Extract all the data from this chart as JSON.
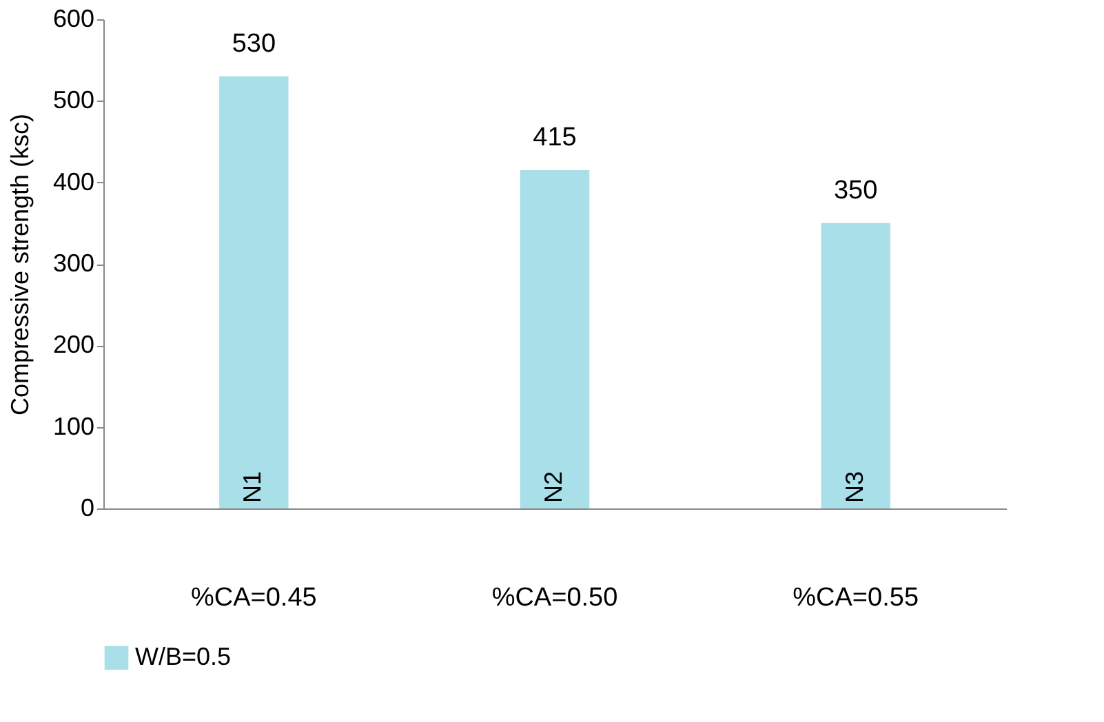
{
  "chart_data": {
    "type": "bar",
    "ylabel": "Compressive strength (ksc)",
    "categories": [
      "%CA=0.45",
      "%CA=0.50",
      "%CA=0.55"
    ],
    "series": [
      {
        "name": "W/B=0.5",
        "color": "#a9dfe8",
        "values": [
          530,
          415,
          350
        ]
      }
    ],
    "ylim": [
      0,
      600
    ],
    "yticks": [
      0,
      100,
      200,
      300,
      400,
      500,
      600
    ],
    "grid": false,
    "legend": "bottom",
    "data_labels": true,
    "annotations": [
      {
        "text": "N1",
        "x": "%CA=0.45",
        "y": 0
      },
      {
        "text": "N2",
        "x": "%CA=0.50",
        "y": 0
      },
      {
        "text": "N3",
        "x": "%CA=0.55",
        "y": 0
      }
    ]
  }
}
